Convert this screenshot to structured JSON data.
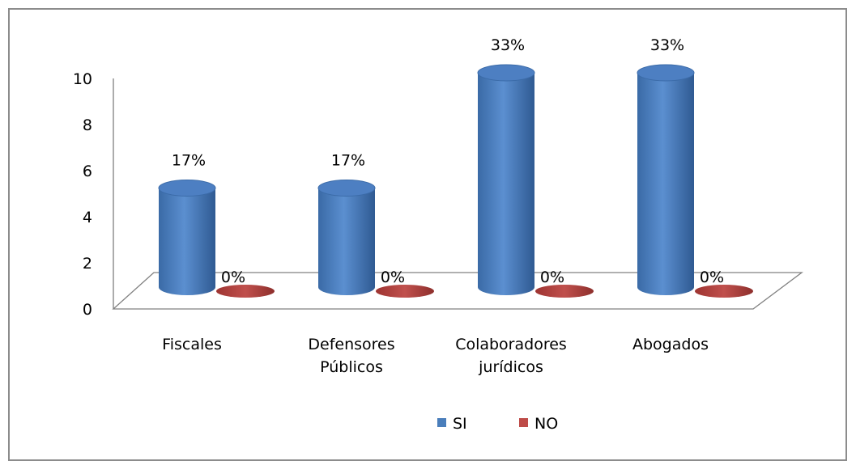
{
  "chart_data": {
    "type": "bar",
    "categories": [
      [
        "Fiscales"
      ],
      [
        "Defensores",
        "Públicos"
      ],
      [
        "Colaboradores",
        "jurídicos"
      ],
      [
        "Abogados"
      ]
    ],
    "series": [
      {
        "name": "SI",
        "values": [
          5,
          5,
          10,
          10
        ],
        "labels": [
          "17%",
          "17%",
          "33%",
          "33%"
        ],
        "color": "#4a7ebb"
      },
      {
        "name": "NO",
        "values": [
          0,
          0,
          0,
          0
        ],
        "labels": [
          "0%",
          "0%",
          "0%",
          "0%"
        ],
        "color": "#be4b48"
      }
    ],
    "ylim": [
      0,
      10
    ],
    "yticks": [
      0,
      2,
      4,
      6,
      8,
      10
    ],
    "xlabel": "",
    "ylabel": "",
    "legend_position": "bottom",
    "style": "3d-cylinder",
    "grid": false
  }
}
